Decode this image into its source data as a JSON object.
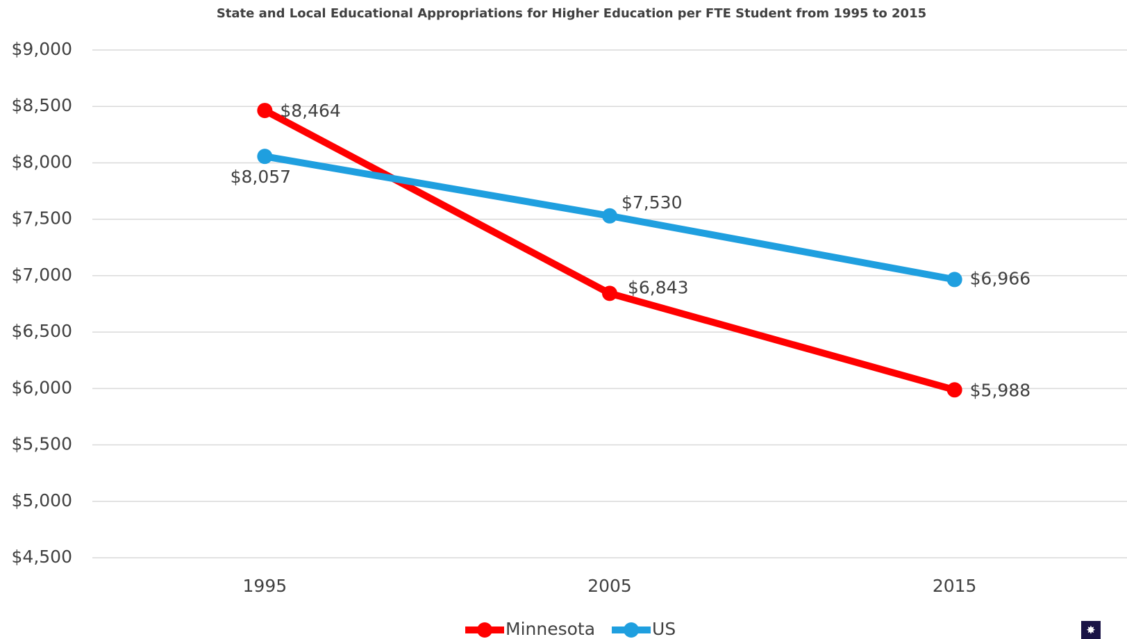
{
  "chart_data": {
    "type": "line",
    "title": "State and Local Educational Appropriations for Higher Education per FTE Student from 1995 to 2015",
    "categories": [
      "1995",
      "2005",
      "2015"
    ],
    "series": [
      {
        "name": "Minnesota",
        "color": "#ff0000",
        "values": [
          8464,
          6843,
          5988
        ],
        "value_labels": [
          "$8,464",
          "$6,843",
          "$5,988"
        ]
      },
      {
        "name": "US",
        "color": "#1f9fdf",
        "values": [
          8057,
          7530,
          6966
        ],
        "value_labels": [
          "$8,057",
          "$7,530",
          "$6,966"
        ]
      }
    ],
    "ylim": [
      4500,
      9000
    ],
    "yticks": [
      {
        "value": 4500,
        "label": "$4,500"
      },
      {
        "value": 5000,
        "label": "$5,000"
      },
      {
        "value": 5500,
        "label": "$5,500"
      },
      {
        "value": 6000,
        "label": "$6,000"
      },
      {
        "value": 6500,
        "label": "$6,500"
      },
      {
        "value": 7000,
        "label": "$7,000"
      },
      {
        "value": 7500,
        "label": "$7,500"
      },
      {
        "value": 8000,
        "label": "$8,000"
      },
      {
        "value": 8500,
        "label": "$8,500"
      },
      {
        "value": 9000,
        "label": "$9,000"
      }
    ],
    "grid": true,
    "legend": "bottom"
  }
}
